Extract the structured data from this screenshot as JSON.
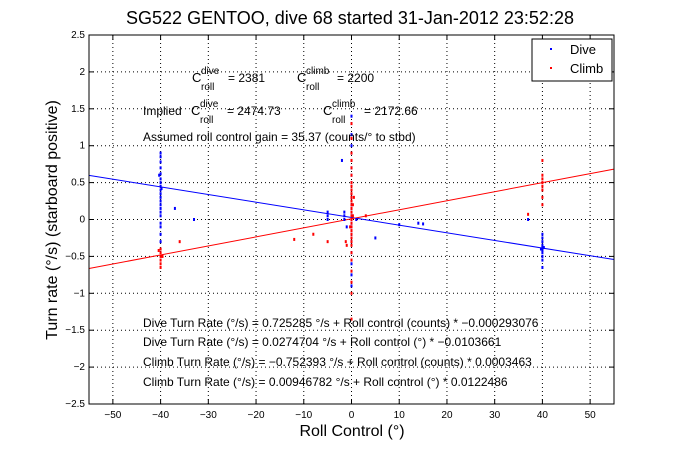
{
  "chart_data": {
    "type": "scatter",
    "title": "SG522 GENTOO, dive 68 started 31-Jan-2012 23:52:28",
    "xlabel": "Roll Control (°)",
    "ylabel": "Turn rate (°/s) (starboard positive)",
    "xlim": [
      -55,
      55
    ],
    "ylim": [
      -2.5,
      2.5
    ],
    "grid": true,
    "xticks": [
      -50,
      -40,
      -30,
      -20,
      -10,
      0,
      10,
      20,
      30,
      40,
      50
    ],
    "yticks": [
      -2.5,
      -2,
      -1.5,
      -1,
      -0.5,
      0,
      0.5,
      1,
      1.5,
      2,
      2.5
    ],
    "legend": {
      "placement": "top-right",
      "entries": [
        "Dive",
        "Climb"
      ]
    },
    "series": [
      {
        "name": "Dive",
        "color": "#0000ff",
        "fit": {
          "intercept": 0.0274704,
          "slope": -0.0103661
        },
        "points": [
          [
            -40,
            0.9
          ],
          [
            -40,
            0.85
          ],
          [
            -40,
            0.78
          ],
          [
            -40,
            0.7
          ],
          [
            -40,
            0.62
          ],
          [
            -40,
            0.55
          ],
          [
            -40,
            0.5
          ],
          [
            -40,
            0.45
          ],
          [
            -40,
            0.4
          ],
          [
            -40,
            0.35
          ],
          [
            -40,
            0.3
          ],
          [
            -40,
            0.25
          ],
          [
            -40,
            0.2
          ],
          [
            -40,
            0.15
          ],
          [
            -40,
            0.1
          ],
          [
            -40,
            0.05
          ],
          [
            -40,
            -0.05
          ],
          [
            -40,
            -0.1
          ],
          [
            -40,
            -0.2
          ],
          [
            -40,
            -0.3
          ],
          [
            -40.3,
            0.6
          ],
          [
            -39.8,
            0.42
          ],
          [
            -37,
            0.15
          ],
          [
            -33,
            0.0
          ],
          [
            -5,
            0.1
          ],
          [
            -5,
            0.05
          ],
          [
            -5,
            0.0
          ],
          [
            -2,
            0.8
          ],
          [
            0,
            1.4
          ],
          [
            0,
            1.3
          ],
          [
            0,
            1.15
          ],
          [
            0,
            1.0
          ],
          [
            0,
            0.9
          ],
          [
            0,
            0.8
          ],
          [
            0,
            0.7
          ],
          [
            0,
            0.6
          ],
          [
            0,
            0.5
          ],
          [
            0,
            0.4
          ],
          [
            0,
            0.3
          ],
          [
            0,
            0.2
          ],
          [
            0,
            0.15
          ],
          [
            0,
            0.1
          ],
          [
            0,
            0.05
          ],
          [
            0,
            0.0
          ],
          [
            0,
            -0.05
          ],
          [
            0,
            -0.1
          ],
          [
            0,
            -0.2
          ],
          [
            0,
            -0.3
          ],
          [
            0,
            -0.45
          ],
          [
            0,
            -0.6
          ],
          [
            0,
            -0.75
          ],
          [
            0,
            -0.9
          ],
          [
            -1.5,
            0.1
          ],
          [
            -1.5,
            0.05
          ],
          [
            -1.5,
            0.0
          ],
          [
            -1,
            -0.1
          ],
          [
            1,
            0.0
          ],
          [
            5,
            -0.25
          ],
          [
            10,
            -0.07
          ],
          [
            14,
            -0.05
          ],
          [
            15,
            -0.06
          ],
          [
            40,
            -0.2
          ],
          [
            40,
            -0.25
          ],
          [
            40,
            -0.3
          ],
          [
            40,
            -0.35
          ],
          [
            40,
            -0.38
          ],
          [
            40,
            -0.4
          ],
          [
            40,
            -0.42
          ],
          [
            40,
            -0.45
          ],
          [
            40,
            -0.5
          ],
          [
            40,
            -0.55
          ],
          [
            40,
            -0.65
          ],
          [
            39.7,
            -0.4
          ],
          [
            40.3,
            -0.38
          ],
          [
            37,
            0.0
          ]
        ]
      },
      {
        "name": "Climb",
        "color": "#ff0000",
        "fit": {
          "intercept": 0.00946782,
          "slope": 0.0122486
        },
        "points": [
          [
            0,
            1.3
          ],
          [
            0,
            1.1
          ],
          [
            0,
            0.9
          ],
          [
            0,
            0.8
          ],
          [
            0,
            0.7
          ],
          [
            0,
            0.6
          ],
          [
            0,
            0.5
          ],
          [
            0,
            0.45
          ],
          [
            0,
            0.4
          ],
          [
            0,
            0.35
          ],
          [
            0,
            0.3
          ],
          [
            0,
            0.25
          ],
          [
            0,
            0.2
          ],
          [
            0,
            0.15
          ],
          [
            0,
            0.1
          ],
          [
            0,
            0.05
          ],
          [
            0,
            0.0
          ],
          [
            0,
            -0.05
          ],
          [
            0,
            -0.1
          ],
          [
            0,
            -0.15
          ],
          [
            0,
            -0.2
          ],
          [
            0,
            -0.25
          ],
          [
            0,
            -0.3
          ],
          [
            0,
            -0.35
          ],
          [
            0,
            -0.45
          ],
          [
            0,
            -0.55
          ],
          [
            0,
            -0.7
          ],
          [
            0,
            -0.85
          ],
          [
            0,
            -1.0
          ],
          [
            0,
            -1.35
          ],
          [
            0.3,
            0.2
          ],
          [
            0.3,
            0.05
          ],
          [
            -0.3,
            -0.1
          ],
          [
            0.5,
            0.3
          ],
          [
            -1,
            -0.35
          ],
          [
            -1.2,
            -0.3
          ],
          [
            -5,
            -0.3
          ],
          [
            -12,
            -0.27
          ],
          [
            -8,
            -0.2
          ],
          [
            -36,
            -0.3
          ],
          [
            -40,
            -0.4
          ],
          [
            -40,
            -0.45
          ],
          [
            -40,
            -0.5
          ],
          [
            -40,
            -0.55
          ],
          [
            -40,
            -0.6
          ],
          [
            -40,
            -0.65
          ],
          [
            -39.6,
            -0.5
          ],
          [
            -40.4,
            -0.42
          ],
          [
            3,
            0.05
          ],
          [
            40,
            0.2
          ],
          [
            40,
            0.3
          ],
          [
            40,
            0.4
          ],
          [
            40,
            0.45
          ],
          [
            40,
            0.5
          ],
          [
            40,
            0.55
          ],
          [
            40,
            0.6
          ],
          [
            40,
            0.8
          ],
          [
            37,
            0.07
          ]
        ]
      }
    ],
    "annotations": {
      "c_dive": {
        "base": "C",
        "sup": "dive",
        "sub": "roll",
        "value": "= 2381"
      },
      "c_climb": {
        "base": "C",
        "sup": "climb",
        "sub": "roll",
        "value": "= 2200"
      },
      "implied_label": "Implied",
      "implied_dive": {
        "base": "C",
        "sup": "dive",
        "sub": "roll",
        "value": "= 2474.73"
      },
      "implied_climb": {
        "base": "C",
        "sup": "climb",
        "sub": "roll",
        "value": "= 2172.66"
      },
      "gain": "Assumed roll control gain = 35.37 (counts/° to stbd)",
      "equations": [
        "Dive Turn Rate (°/s) = 0.725285 °/s + Roll control (counts) * −0.000293076",
        "Dive Turn Rate (°/s) = 0.0274704 °/s + Roll control (°) * −0.0103661",
        "Climb Turn Rate (°/s) = −0.752393 °/s + Roll control (counts) * 0.0003463",
        "Climb Turn Rate (°/s) = 0.00946782 °/s + Roll control (°) * 0.0122486"
      ]
    }
  }
}
